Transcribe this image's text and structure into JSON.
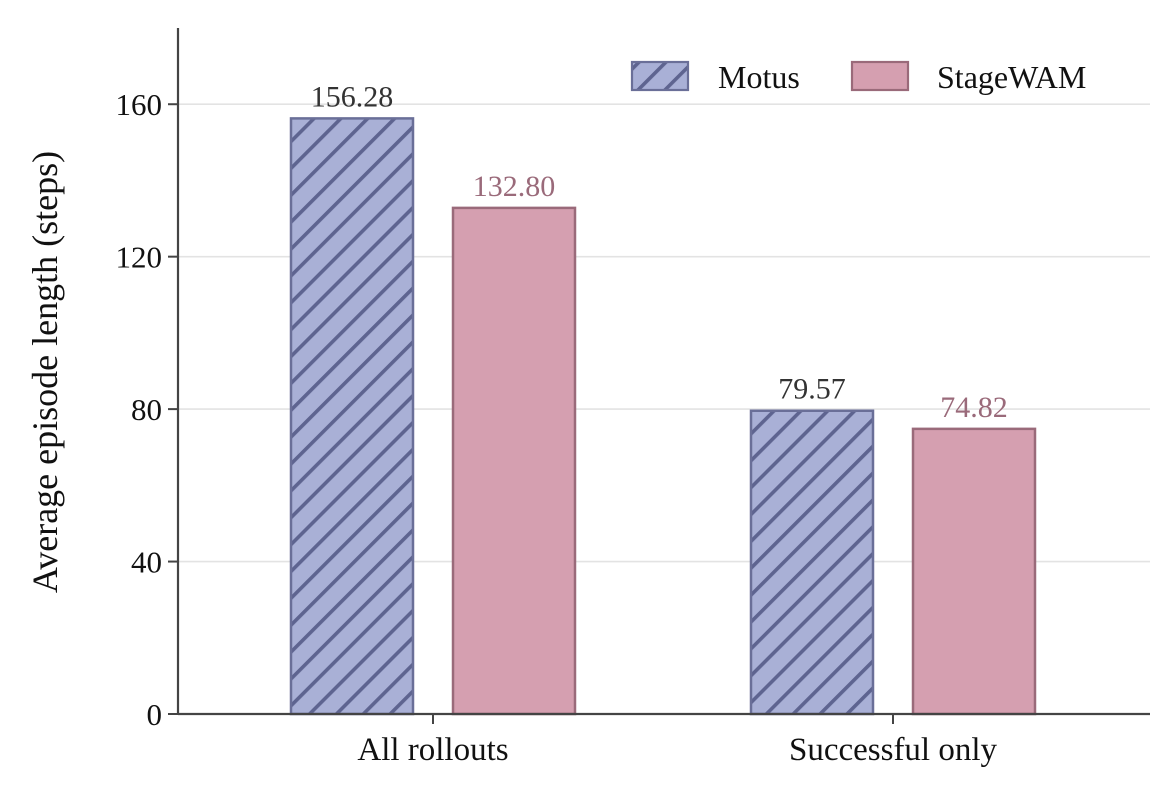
{
  "chart_data": {
    "type": "bar",
    "title": "",
    "xlabel": "",
    "ylabel": "Average episode length (steps)",
    "categories": [
      "All rollouts",
      "Successful only"
    ],
    "ylim": [
      0,
      180
    ],
    "yticks": [
      0,
      40,
      80,
      120,
      160
    ],
    "grid": true,
    "legend_position": "top-right",
    "series": [
      {
        "name": "Motus",
        "values": [
          156.28,
          79.57
        ],
        "labels": [
          "156.28",
          "79.57"
        ],
        "color": "#a9b0d6",
        "edge_color": "#6a6f98",
        "label_color": "#333333",
        "pattern": "diagonal-hatch"
      },
      {
        "name": "StageWAM",
        "values": [
          132.8,
          74.82
        ],
        "labels": [
          "132.80",
          "74.82"
        ],
        "color": "#d59fb0",
        "edge_color": "#9a6a7a",
        "label_color": "#9a6a7a",
        "pattern": "solid"
      }
    ]
  }
}
